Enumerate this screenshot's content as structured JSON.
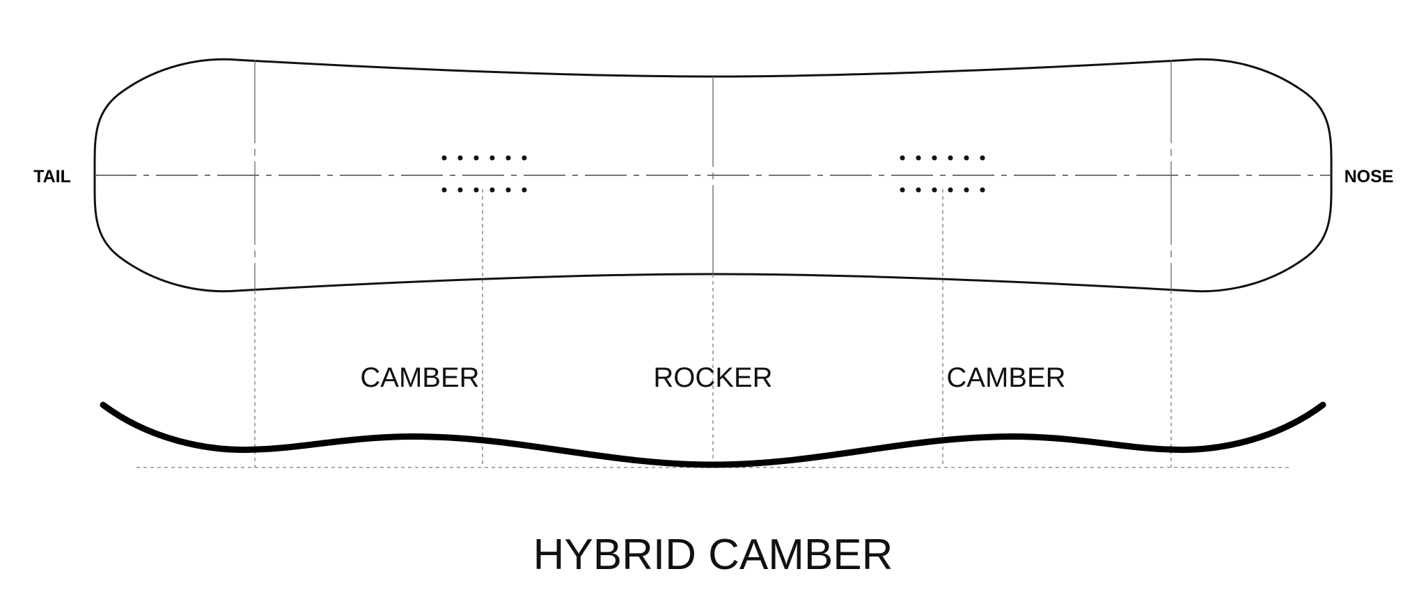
{
  "labels": {
    "tail": "TAIL",
    "nose": "NOSE",
    "zones": [
      "CAMBER",
      "ROCKER",
      "CAMBER"
    ],
    "title": "HYBRID CAMBER"
  },
  "board": {
    "insert_pattern": "2 rows x 6 inserts per binding",
    "profile_type": "camber-rocker-camber"
  },
  "colors": {
    "lines": "#111111",
    "background": "#ffffff"
  }
}
